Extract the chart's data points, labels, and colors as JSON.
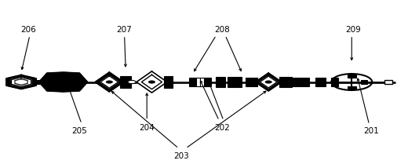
{
  "bg_color": "#ffffff",
  "line_color": "#1a1a1a",
  "sy": 0.5,
  "labels": {
    "201": [
      0.91,
      0.2,
      "201"
    ],
    "202": [
      0.545,
      0.22,
      "202"
    ],
    "203": [
      0.445,
      0.05,
      "203"
    ],
    "204": [
      0.36,
      0.22,
      "204"
    ],
    "205": [
      0.195,
      0.2,
      "205"
    ],
    "206": [
      0.07,
      0.82,
      "206"
    ],
    "207": [
      0.305,
      0.82,
      "207"
    ],
    "208": [
      0.545,
      0.82,
      "208"
    ],
    "209": [
      0.865,
      0.82,
      "209"
    ]
  }
}
